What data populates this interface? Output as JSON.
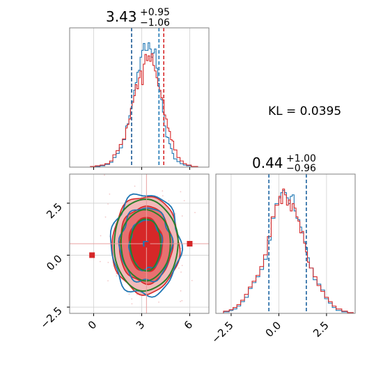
{
  "colors": {
    "red": "#d62728",
    "blue": "#1f77b4",
    "green": "#2a7f2a",
    "grid": "#d0d0d0",
    "axis": "#7f7f7f",
    "fill_outer": "#f2b9b9",
    "fill_mid": "#e87070",
    "fill_inner": "#d62728"
  },
  "chart_data": [
    {
      "type": "histogram",
      "panel": "marginal-x",
      "title_value": "3.43",
      "title_plus": "+0.95",
      "title_minus": "−1.06",
      "xlim": [
        -1.5,
        7.2
      ],
      "grid_x": [
        0,
        3,
        6
      ],
      "quantile_lines": [
        {
          "series": "red",
          "values": [
            2.37,
            4.38
          ]
        },
        {
          "series": "blue",
          "values": [
            2.37,
            4.08
          ]
        }
      ],
      "series": [
        {
          "color": "blue",
          "x": [
            -0.5,
            -0.2,
            0.1,
            0.4,
            0.7,
            1.0,
            1.2,
            1.4,
            1.6,
            1.8,
            2.0,
            2.1,
            2.2,
            2.3,
            2.4,
            2.5,
            2.6,
            2.7,
            2.8,
            2.9,
            3.0,
            3.1,
            3.2,
            3.3,
            3.4,
            3.5,
            3.6,
            3.7,
            3.8,
            3.9,
            4.0,
            4.1,
            4.2,
            4.3,
            4.4,
            4.5,
            4.6,
            4.7,
            4.8,
            4.9,
            5.0,
            5.2,
            5.4,
            5.6,
            5.8,
            6.1,
            6.5
          ],
          "counts": [
            0,
            1,
            1,
            2,
            4,
            7,
            14,
            20,
            28,
            40,
            60,
            63,
            75,
            85,
            96,
            112,
            123,
            138,
            141,
            160,
            170,
            180,
            170,
            170,
            181,
            172,
            160,
            166,
            172,
            144,
            122,
            110,
            98,
            80,
            60,
            44,
            43,
            34,
            27,
            20,
            12,
            8,
            5,
            3,
            2,
            1,
            0
          ]
        },
        {
          "color": "red",
          "x": [
            -0.5,
            -0.2,
            0.1,
            0.4,
            0.7,
            1.0,
            1.2,
            1.4,
            1.6,
            1.8,
            2.0,
            2.1,
            2.2,
            2.3,
            2.4,
            2.5,
            2.6,
            2.7,
            2.8,
            2.9,
            3.0,
            3.1,
            3.2,
            3.3,
            3.4,
            3.5,
            3.6,
            3.7,
            3.8,
            3.9,
            4.0,
            4.1,
            4.2,
            4.3,
            4.4,
            4.5,
            4.6,
            4.7,
            4.8,
            4.9,
            5.0,
            5.2,
            5.4,
            5.6,
            5.8,
            6.1,
            6.5
          ],
          "counts": [
            0,
            1,
            2,
            3,
            5,
            9,
            18,
            24,
            33,
            41,
            57,
            62,
            70,
            86,
            94,
            104,
            120,
            114,
            130,
            140,
            120,
            150,
            164,
            155,
            162,
            154,
            165,
            148,
            140,
            130,
            118,
            112,
            101,
            98,
            76,
            70,
            57,
            52,
            40,
            38,
            25,
            14,
            9,
            5,
            3,
            1,
            0
          ]
        }
      ]
    },
    {
      "type": "histogram",
      "panel": "marginal-y",
      "title_value": "0.44",
      "title_plus": "+1.00",
      "title_minus": "−0.96",
      "xlim": [
        -3.3,
        4.0
      ],
      "xticks": [
        -2.5,
        0.0,
        2.5
      ],
      "xtick_labels": [
        "−2.5",
        "0.0",
        "2.5"
      ],
      "quantile_lines": [
        {
          "series": "red",
          "values": [
            -0.52,
            1.44
          ]
        },
        {
          "series": "blue",
          "values": [
            -0.52,
            1.44
          ]
        }
      ],
      "series": [
        {
          "color": "blue",
          "x": [
            -3.2,
            -2.9,
            -2.6,
            -2.4,
            -2.2,
            -2.0,
            -1.8,
            -1.6,
            -1.4,
            -1.2,
            -1.0,
            -0.8,
            -0.6,
            -0.4,
            -0.2,
            0.0,
            0.1,
            0.2,
            0.3,
            0.4,
            0.5,
            0.6,
            0.7,
            0.8,
            0.9,
            1.0,
            1.1,
            1.2,
            1.3,
            1.4,
            1.5,
            1.6,
            1.8,
            2.0,
            2.2,
            2.4,
            2.6,
            2.8,
            3.0,
            3.3,
            3.6,
            3.9
          ],
          "counts": [
            0,
            2,
            4,
            6,
            10,
            16,
            22,
            34,
            42,
            50,
            60,
            74,
            100,
            130,
            150,
            158,
            165,
            168,
            165,
            158,
            150,
            160,
            162,
            140,
            130,
            128,
            118,
            110,
            98,
            90,
            76,
            62,
            46,
            40,
            32,
            20,
            14,
            8,
            4,
            2,
            1,
            0
          ]
        },
        {
          "color": "red",
          "x": [
            -3.2,
            -2.9,
            -2.6,
            -2.4,
            -2.2,
            -2.0,
            -1.8,
            -1.6,
            -1.4,
            -1.2,
            -1.0,
            -0.8,
            -0.6,
            -0.4,
            -0.2,
            0.0,
            0.1,
            0.2,
            0.3,
            0.4,
            0.5,
            0.6,
            0.7,
            0.8,
            0.9,
            1.0,
            1.1,
            1.2,
            1.3,
            1.4,
            1.5,
            1.6,
            1.8,
            2.0,
            2.2,
            2.4,
            2.6,
            2.8,
            3.0,
            3.3,
            3.6,
            3.9
          ],
          "counts": [
            0,
            3,
            5,
            8,
            12,
            18,
            26,
            36,
            44,
            52,
            64,
            80,
            105,
            132,
            148,
            160,
            150,
            170,
            162,
            148,
            155,
            140,
            150,
            144,
            132,
            126,
            110,
            112,
            96,
            84,
            70,
            62,
            50,
            38,
            30,
            22,
            16,
            10,
            6,
            3,
            1,
            0
          ]
        }
      ]
    },
    {
      "type": "scatter",
      "panel": "joint",
      "xlim": [
        -1.5,
        7.2
      ],
      "ylim": [
        -2.8,
        3.9
      ],
      "xticks": [
        0,
        3,
        6
      ],
      "xtick_labels": [
        "0",
        "3",
        "6"
      ],
      "yticks": [
        -2.5,
        0.0,
        2.5
      ],
      "ytick_labels": [
        "−2.5",
        "0.0",
        "2.5"
      ],
      "center": [
        3.25,
        0.5
      ],
      "filled_contours": [
        {
          "level": "outer",
          "rx": 2.1,
          "ry": 2.35
        },
        {
          "level": "mid",
          "rx": 1.65,
          "ry": 1.85
        },
        {
          "level": "inner",
          "rx": 1.05,
          "ry": 1.3
        }
      ],
      "blue_contours": [
        {
          "rx": 2.15,
          "ry": 2.45
        },
        {
          "rx": 1.6,
          "ry": 1.8
        },
        {
          "rx": 1.0,
          "ry": 1.2
        }
      ],
      "green_contours": [
        {
          "rx": 2.0,
          "ry": 2.2
        },
        {
          "rx": 1.55,
          "ry": 1.7
        },
        {
          "rx": 0.95,
          "ry": 1.25
        }
      ],
      "markers": [
        {
          "color": "blue",
          "x": 3.25,
          "y": 0.55
        },
        {
          "color": "red",
          "x": 3.35,
          "y": 0.5
        },
        {
          "color": "red",
          "x": -0.1,
          "y": 0.0
        },
        {
          "color": "red",
          "x": 6.0,
          "y": 0.55
        }
      ],
      "crosshair": {
        "x": 3.3,
        "y": 0.55
      }
    }
  ],
  "annotation": {
    "kl_text": "KL = 0.0395"
  }
}
